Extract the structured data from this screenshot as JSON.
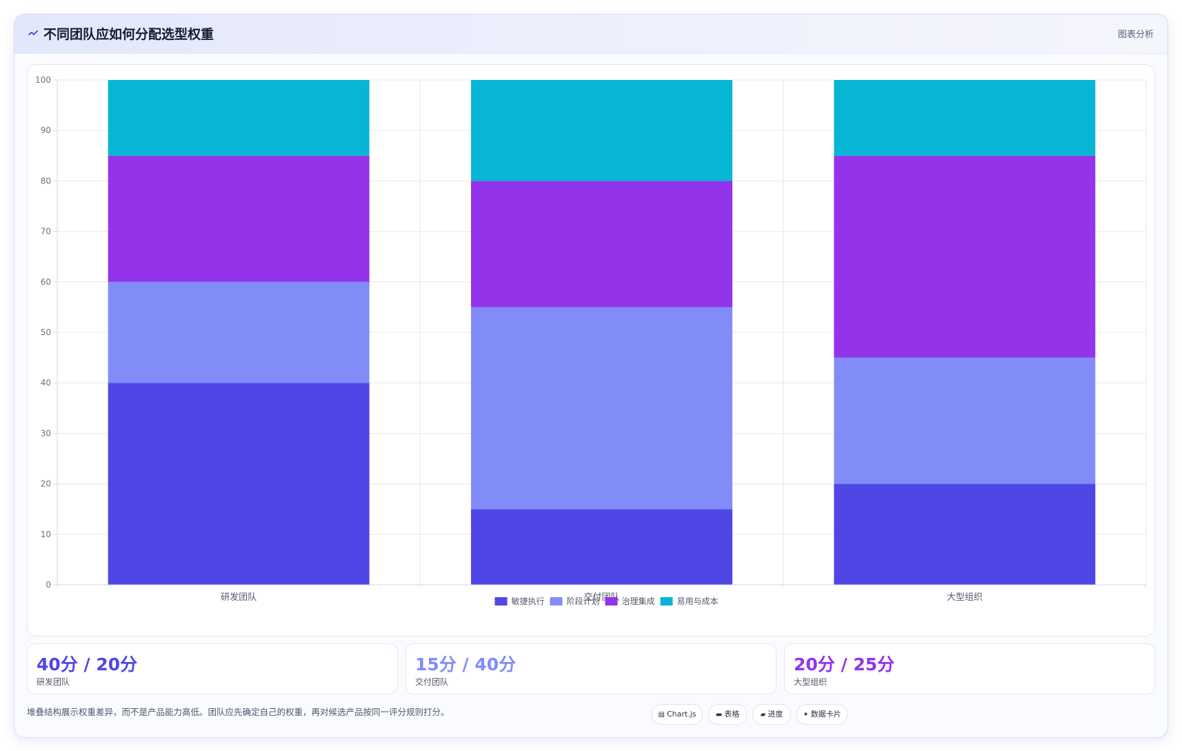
{
  "header": {
    "title": "不同团队应如何分配选型权重",
    "tag": "图表分析",
    "icon": "trend-line-icon"
  },
  "chart_data": {
    "type": "bar",
    "stacked": true,
    "categories": [
      "研发团队",
      "交付团队",
      "大型组织"
    ],
    "series": [
      {
        "name": "敏捷执行",
        "color": "#4f46e5",
        "values": [
          40,
          15,
          20
        ]
      },
      {
        "name": "阶段计划",
        "color": "#818cf8",
        "values": [
          20,
          40,
          25
        ]
      },
      {
        "name": "治理集成",
        "color": "#9333ea",
        "values": [
          25,
          25,
          40
        ]
      },
      {
        "name": "易用与成本",
        "color": "#06b6d4",
        "values": [
          15,
          20,
          15
        ]
      }
    ],
    "ylim": [
      0,
      100
    ],
    "yticks": [
      0,
      10,
      20,
      30,
      40,
      50,
      60,
      70,
      80,
      90,
      100
    ],
    "grid": true,
    "legend": "bottom"
  },
  "stats": [
    {
      "value": "40分 / 20分",
      "label": "研发团队",
      "color": "#4f46e5"
    },
    {
      "value": "15分 / 40分",
      "label": "交付团队",
      "color": "#818cf8"
    },
    {
      "value": "20分 / 25分",
      "label": "大型组织",
      "color": "#9333ea"
    }
  ],
  "footer": {
    "note": "堆叠结构展示权重差异，而不是产品能力高低。团队应先确定自己的权重，再对候选产品按同一评分规则打分。",
    "chips": [
      {
        "icon": "▤",
        "label": "Chart.js"
      },
      {
        "icon": "▬",
        "label": "表格"
      },
      {
        "icon": "▰",
        "label": "进度"
      },
      {
        "icon": "✦",
        "label": "数据卡片"
      }
    ]
  }
}
